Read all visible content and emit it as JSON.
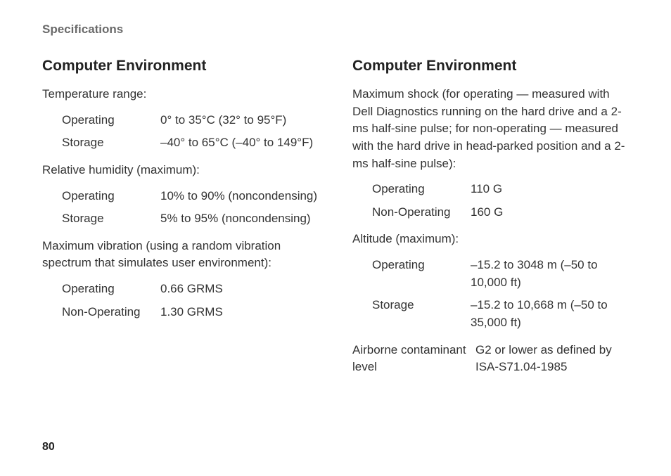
{
  "header": "Specifications",
  "page_number": "80",
  "left": {
    "title": "Computer Environment",
    "temp_label": "Temperature range:",
    "temp": [
      {
        "label": "Operating",
        "value": "0° to 35°C (32° to 95°F)"
      },
      {
        "label": "Storage",
        "value": "–40° to 65°C (–40° to 149°F)"
      }
    ],
    "humidity_label": "Relative humidity (maximum):",
    "humidity": [
      {
        "label": "Operating",
        "value": "10% to 90% (noncondensing)"
      },
      {
        "label": "Storage",
        "value": "5% to 95% (noncondensing)"
      }
    ],
    "vibration_label": "Maximum vibration (using a random vibration spectrum that simulates user environment):",
    "vibration": [
      {
        "label": "Operating",
        "value": "0.66 GRMS"
      },
      {
        "label": "Non-Operating",
        "value": "1.30 GRMS"
      }
    ]
  },
  "right": {
    "title": "Computer Environment",
    "shock_label": "Maximum shock (for operating — measured with Dell Diagnostics running on the hard drive and a 2-ms half-sine pulse; for non-operating — measured with the hard drive in head-parked position and a 2-ms half-sine pulse):",
    "shock": [
      {
        "label": "Operating",
        "value": "110 G"
      },
      {
        "label": "Non-Operating",
        "value": "160 G"
      }
    ],
    "altitude_label": "Altitude (maximum):",
    "altitude": [
      {
        "label": "Operating",
        "value": "–15.2 to 3048 m (–50 to 10,000 ft)"
      },
      {
        "label": "Storage",
        "value": "–15.2 to 10,668 m (–50 to 35,000 ft)"
      }
    ],
    "contaminant": {
      "label": "Airborne contaminant level",
      "value": "G2 or lower as defined by ISA-S71.04-1985"
    }
  }
}
